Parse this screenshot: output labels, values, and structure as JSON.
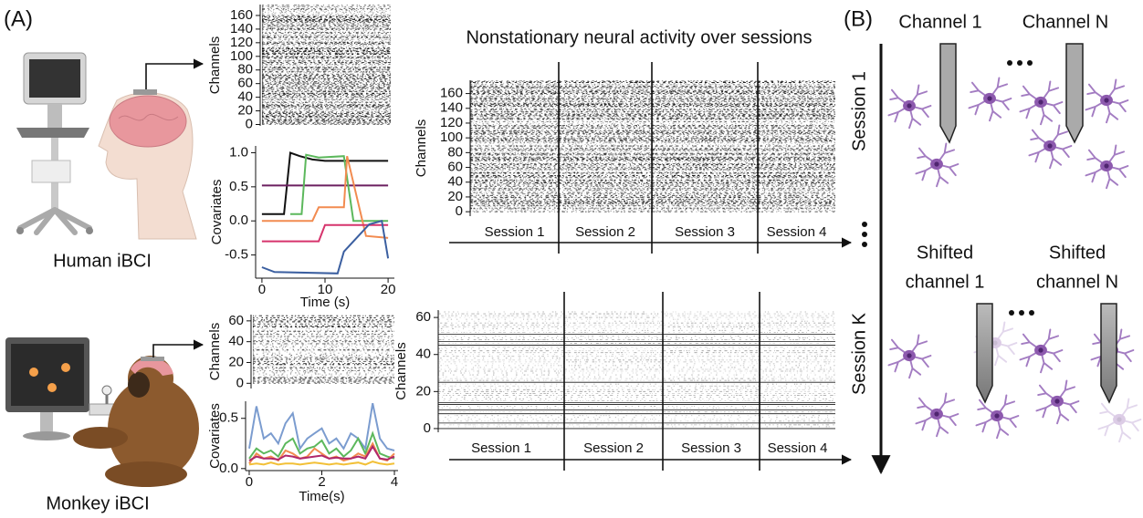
{
  "labels": {
    "panel_a": "(A)",
    "panel_b": "(B)",
    "human": "Human iBCI",
    "monkey": "Monkey iBCI",
    "channel_1": "Channel 1",
    "channel_n": "Channel N",
    "session_1": "Session 1",
    "session_k": "Session K",
    "shifted_channel_1": [
      "Shifted",
      "channel 1"
    ],
    "shifted_channel_n": [
      "Shifted",
      "channel N"
    ]
  },
  "chart_data": [
    {
      "type": "raster",
      "ylabel": "Channels",
      "ylim": [
        -2,
        176
      ],
      "yticks": [
        0,
        20,
        40,
        60,
        80,
        100,
        120,
        140,
        160
      ]
    },
    {
      "type": "line",
      "xlabel": "Time (s)",
      "ylabel": "Covariates",
      "xlim": [
        -1,
        21
      ],
      "ylim": [
        -0.84,
        1.1
      ],
      "xticks": [
        0,
        10,
        20
      ],
      "yticks": [
        -0.5,
        {
          "value": 0,
          "label": "0.0"
        },
        0.5,
        {
          "value": 1,
          "label": "1.0"
        }
      ],
      "series": [
        {
          "name": null,
          "color": "#111111",
          "x": [
            0,
            3.5,
            4.5,
            6,
            8,
            10,
            14,
            20
          ],
          "values": [
            0.1,
            0.1,
            1.0,
            0.95,
            0.9,
            0.88,
            0.88,
            0.88
          ]
        },
        {
          "name": null,
          "color": "#6b1f5f",
          "x": [
            0,
            20
          ],
          "values": [
            0.52,
            0.52
          ]
        },
        {
          "name": null,
          "color": "#5cb85c",
          "x": [
            4.5,
            6.3,
            7,
            9,
            13,
            14.5,
            20
          ],
          "values": [
            0.1,
            0.1,
            0.97,
            0.93,
            0.95,
            0.0,
            0.0
          ]
        },
        {
          "name": null,
          "color": "#f28b50",
          "x": [
            0,
            8,
            9,
            13,
            13.5,
            16.5,
            20
          ],
          "values": [
            0.0,
            0.0,
            0.2,
            0.2,
            0.95,
            -0.22,
            -0.25
          ]
        },
        {
          "name": null,
          "color": "#d6336c",
          "x": [
            0,
            9,
            10,
            20
          ],
          "values": [
            -0.3,
            -0.3,
            -0.06,
            -0.06
          ]
        },
        {
          "name": null,
          "color": "#3b5fa0",
          "x": [
            0,
            2,
            12,
            13,
            17,
            19,
            20
          ],
          "values": [
            -0.68,
            -0.75,
            -0.77,
            -0.45,
            -0.05,
            0.0,
            -0.55
          ]
        }
      ]
    },
    {
      "type": "raster",
      "title": "Nonstationary neural activity over sessions",
      "ylabel": "Channels",
      "ylim": [
        -6,
        178
      ],
      "yticks": [
        0,
        20,
        40,
        60,
        80,
        100,
        120,
        140,
        160
      ],
      "categories": [
        "Session 1",
        "Session 2",
        "Session 3",
        "Session 4"
      ]
    },
    {
      "type": "raster",
      "ylabel": "Channels",
      "ylim": [
        -5,
        66
      ],
      "yticks": [
        0,
        20,
        40,
        60
      ]
    },
    {
      "type": "line",
      "xlabel": "Time(s)",
      "ylabel": "Covariates",
      "xlim": [
        -0.1,
        4.1
      ],
      "ylim": [
        -0.02,
        0.67
      ],
      "xticks": [
        0,
        2,
        4
      ],
      "yticks": [
        {
          "value": 0,
          "label": "0.0"
        },
        0.5
      ],
      "x": [
        0,
        0.2,
        0.4,
        0.6,
        0.8,
        1,
        1.2,
        1.4,
        1.6,
        1.8,
        2,
        2.2,
        2.4,
        2.6,
        2.8,
        3,
        3.2,
        3.4,
        3.6,
        3.8,
        4
      ],
      "series": [
        {
          "name": null,
          "color": "#7b9ccf",
          "values": [
            0.2,
            0.62,
            0.3,
            0.35,
            0.25,
            0.45,
            0.55,
            0.2,
            0.3,
            0.35,
            0.4,
            0.25,
            0.3,
            0.2,
            0.35,
            0.3,
            0.2,
            0.65,
            0.3,
            0.2,
            0.18
          ]
        },
        {
          "name": null,
          "color": "#5cb85c",
          "values": [
            0.1,
            0.2,
            0.15,
            0.18,
            0.12,
            0.25,
            0.3,
            0.15,
            0.2,
            0.22,
            0.28,
            0.15,
            0.2,
            0.12,
            0.18,
            0.3,
            0.15,
            0.35,
            0.15,
            0.12,
            0.1
          ]
        },
        {
          "name": null,
          "color": "#f28b50",
          "values": [
            0.05,
            0.15,
            0.1,
            0.12,
            0.08,
            0.18,
            0.15,
            0.1,
            0.12,
            0.2,
            0.15,
            0.1,
            0.12,
            0.08,
            0.1,
            0.15,
            0.12,
            0.25,
            0.1,
            0.08,
            0.15
          ]
        },
        {
          "name": null,
          "color": "#b0276b",
          "values": [
            0.08,
            0.12,
            0.1,
            0.1,
            0.09,
            0.13,
            0.12,
            0.1,
            0.11,
            0.12,
            0.13,
            0.1,
            0.11,
            0.1,
            0.1,
            0.12,
            0.1,
            0.22,
            0.1,
            0.09,
            0.12
          ]
        },
        {
          "name": null,
          "color": "#f2c037",
          "values": [
            0.04,
            0.05,
            0.04,
            0.06,
            0.04,
            0.05,
            0.05,
            0.04,
            0.05,
            0.06,
            0.05,
            0.04,
            0.05,
            0.04,
            0.05,
            0.06,
            0.04,
            0.07,
            0.05,
            0.04,
            0.05
          ]
        }
      ]
    },
    {
      "type": "raster",
      "ylabel": "Channels",
      "ylim": [
        -2,
        64
      ],
      "yticks": [
        0,
        20,
        40,
        60
      ],
      "categories": [
        "Session 1",
        "Session 2",
        "Session 3",
        "Session 4"
      ]
    }
  ]
}
